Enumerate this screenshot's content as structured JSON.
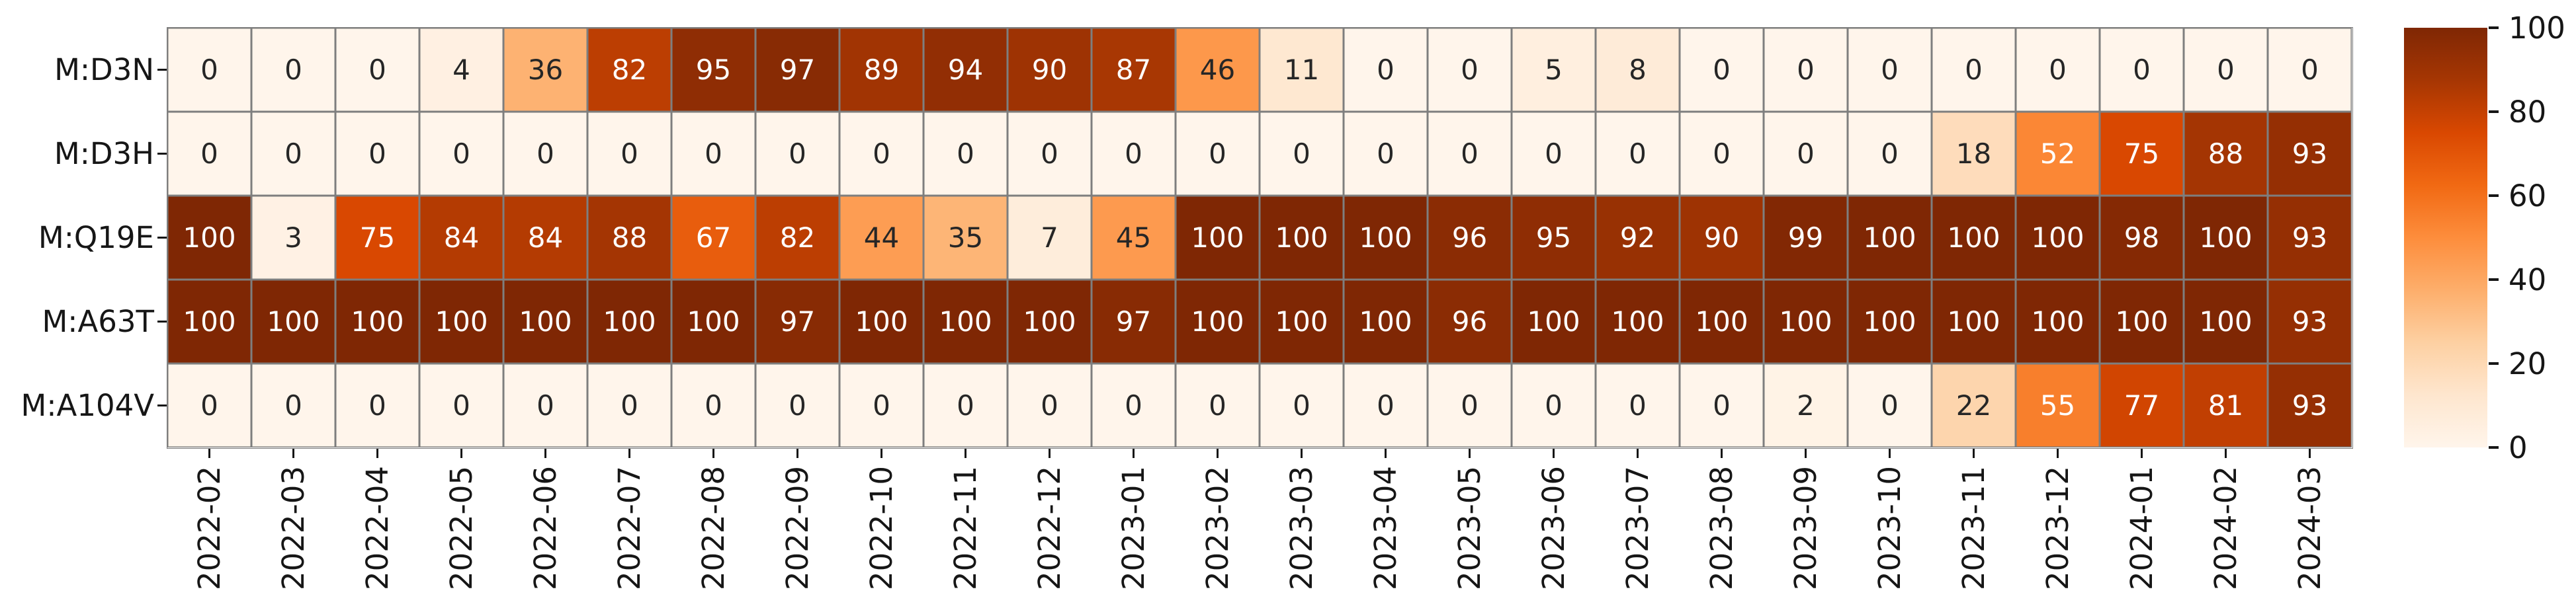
{
  "chart_data": {
    "type": "heatmap",
    "title": "",
    "xlabel": "",
    "ylabel": "",
    "rows": [
      "M:D3N",
      "M:D3H",
      "M:Q19E",
      "M:A63T",
      "M:A104V"
    ],
    "columns": [
      "2022-02",
      "2022-03",
      "2022-04",
      "2022-05",
      "2022-06",
      "2022-07",
      "2022-08",
      "2022-09",
      "2022-10",
      "2022-11",
      "2022-12",
      "2023-01",
      "2023-02",
      "2023-03",
      "2023-04",
      "2023-05",
      "2023-06",
      "2023-07",
      "2023-08",
      "2023-09",
      "2023-10",
      "2023-11",
      "2023-12",
      "2024-01",
      "2024-02",
      "2024-03"
    ],
    "values": [
      [
        0,
        0,
        0,
        4,
        36,
        82,
        95,
        97,
        89,
        94,
        90,
        87,
        46,
        11,
        0,
        0,
        5,
        8,
        0,
        0,
        0,
        0,
        0,
        0,
        0,
        0
      ],
      [
        0,
        0,
        0,
        0,
        0,
        0,
        0,
        0,
        0,
        0,
        0,
        0,
        0,
        0,
        0,
        0,
        0,
        0,
        0,
        0,
        0,
        18,
        52,
        75,
        88,
        93
      ],
      [
        100,
        3,
        75,
        84,
        84,
        88,
        67,
        82,
        44,
        35,
        7,
        45,
        100,
        100,
        100,
        96,
        95,
        92,
        90,
        99,
        100,
        100,
        100,
        98,
        100,
        93
      ],
      [
        100,
        100,
        100,
        100,
        100,
        100,
        100,
        97,
        100,
        100,
        100,
        97,
        100,
        100,
        100,
        96,
        100,
        100,
        100,
        100,
        100,
        100,
        100,
        100,
        100,
        93
      ],
      [
        0,
        0,
        0,
        0,
        0,
        0,
        0,
        0,
        0,
        0,
        0,
        0,
        0,
        0,
        0,
        0,
        0,
        0,
        0,
        2,
        0,
        22,
        55,
        77,
        81,
        93
      ]
    ],
    "annotated": true,
    "vmin": 0,
    "vmax": 100,
    "colorbar_ticks": [
      0,
      20,
      40,
      60,
      80,
      100
    ],
    "legend_position": "right",
    "grid_on": true,
    "colors": {
      "colormap_name": "Oranges",
      "colormap_anchors": [
        "#fff5eb",
        "#fee6ce",
        "#fdd0a2",
        "#fdae6b",
        "#fd8d3c",
        "#f16913",
        "#d94801",
        "#a63603",
        "#7f2704"
      ],
      "grid_line": "#7e7e7e",
      "annot_text_dark": "#262626",
      "annot_text_light": "#ffffff",
      "tick_text": "#161616",
      "background": "#ffffff"
    }
  }
}
